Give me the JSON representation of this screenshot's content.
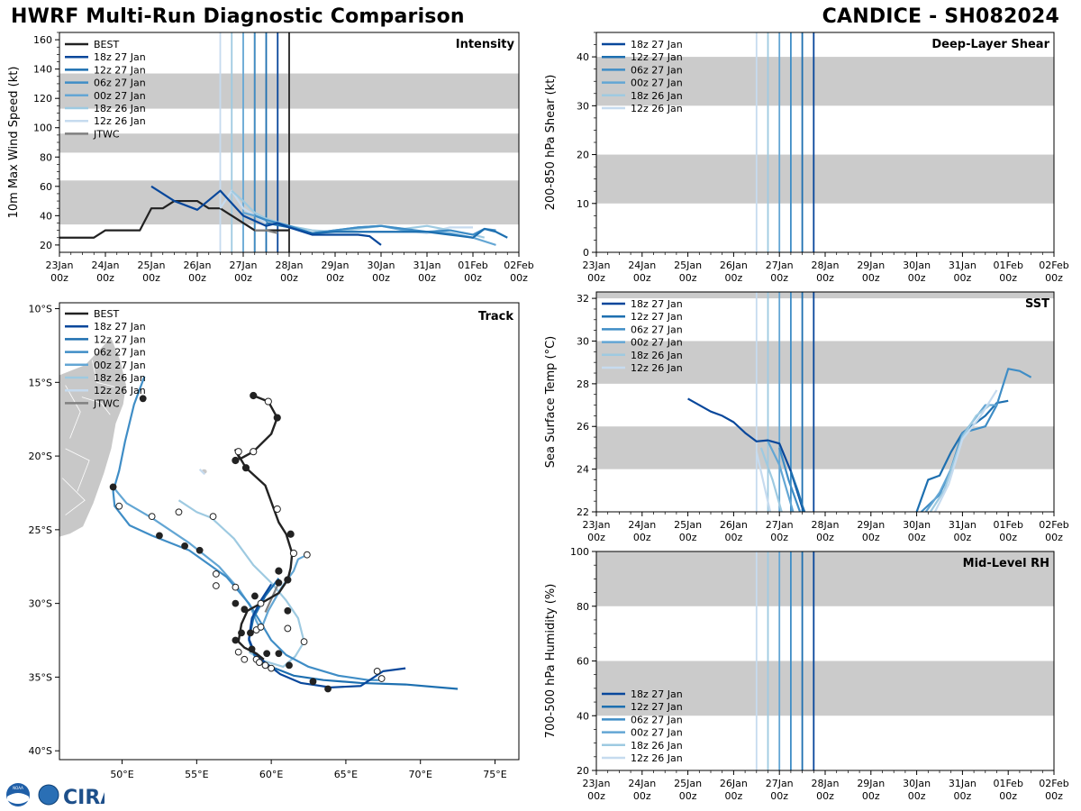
{
  "header": {
    "title_left": "HWRF Multi-Run Diagnostic Comparison",
    "title_right": "CANDICE - SH082024"
  },
  "logo": {
    "text": "CIRA",
    "small_text": "NOAA"
  },
  "colors": {
    "best": "#222222",
    "jtwc": "#808080",
    "shade": "#cbcbcb",
    "runs": {
      "18z 27 Jan": "#08479b",
      "12z 27 Jan": "#1d6fb0",
      "06z 27 Jan": "#3f8dc6",
      "00z 27 Jan": "#63a6d4",
      "18z 26 Jan": "#9ecae1",
      "12z 26 Jan": "#c6dbef"
    }
  },
  "time_axis": {
    "ticks": [
      "23Jan\n00z",
      "24Jan\n00z",
      "25Jan\n00z",
      "26Jan\n00z",
      "27Jan\n00z",
      "28Jan\n00z",
      "29Jan\n00z",
      "30Jan\n00z",
      "31Jan\n00z",
      "01Feb\n00z",
      "02Feb\n00z"
    ]
  },
  "chart_data": [
    {
      "id": "intensity",
      "type": "line",
      "title": "Intensity",
      "ylabel": "10m Max Wind Speed (kt)",
      "xlim_days": [
        0,
        10
      ],
      "ylim": [
        15,
        165
      ],
      "yticks": [
        20,
        40,
        60,
        80,
        100,
        120,
        140,
        160
      ],
      "shaded_bands": [
        [
          34,
          64
        ],
        [
          83,
          96
        ],
        [
          113,
          137
        ]
      ],
      "init_lines": [
        {
          "name": "12z 26 Jan",
          "x": 3.5
        },
        {
          "name": "18z 26 Jan",
          "x": 3.75
        },
        {
          "name": "00z 27 Jan",
          "x": 4.0
        },
        {
          "name": "JTWC",
          "x": 4.25
        },
        {
          "name": "06z 27 Jan",
          "x": 4.25
        },
        {
          "name": "12z 27 Jan",
          "x": 4.5
        },
        {
          "name": "18z 27 Jan",
          "x": 4.75
        },
        {
          "name": "BEST",
          "x": 5.0
        }
      ],
      "legend": [
        "BEST",
        "18z 27 Jan",
        "12z 27 Jan",
        "06z 27 Jan",
        "00z 27 Jan",
        "18z 26 Jan",
        "12z 26 Jan",
        "JTWC"
      ],
      "series": [
        {
          "name": "BEST",
          "x": [
            0,
            0.25,
            0.5,
            0.75,
            1.0,
            1.25,
            1.5,
            1.75,
            2.0,
            2.25,
            2.5,
            2.75,
            3.0,
            3.25,
            3.5,
            3.75,
            4.0,
            4.25,
            4.5,
            4.75,
            5.0
          ],
          "y": [
            25,
            25,
            25,
            25,
            30,
            30,
            30,
            30,
            45,
            45,
            50,
            50,
            50,
            45,
            45,
            40,
            35,
            30,
            30,
            30,
            30
          ]
        },
        {
          "name": "12z 26 Jan",
          "x": [
            3.5,
            3.75,
            4.0,
            4.25,
            4.5,
            5.0,
            5.5,
            6.0,
            6.5,
            7.0,
            7.5,
            8.0,
            8.5,
            9.0
          ],
          "y": [
            45,
            57,
            45,
            40,
            35,
            32,
            28,
            30,
            32,
            33,
            30,
            28,
            32,
            32
          ]
        },
        {
          "name": "18z 26 Jan",
          "x": [
            3.75,
            4.0,
            4.25,
            4.5,
            5.0,
            5.5,
            6.0,
            6.5,
            7.0,
            7.5,
            8.0,
            8.5,
            9.0,
            9.25
          ],
          "y": [
            57,
            50,
            42,
            38,
            33,
            30,
            29,
            31,
            33,
            31,
            33,
            30,
            27,
            25
          ]
        },
        {
          "name": "00z 27 Jan",
          "x": [
            4.0,
            4.25,
            4.5,
            5.0,
            5.5,
            6.0,
            6.5,
            7.0,
            7.5,
            8.0,
            8.5,
            9.0,
            9.5
          ],
          "y": [
            42,
            40,
            37,
            33,
            28,
            30,
            32,
            33,
            30,
            29,
            28,
            25,
            20
          ]
        },
        {
          "name": "06z 27 Jan",
          "x": [
            4.25,
            4.5,
            5.0,
            5.5,
            6.0,
            6.5,
            7.0,
            7.5,
            8.0,
            8.5,
            9.0,
            9.25,
            9.5
          ],
          "y": [
            40,
            37,
            33,
            28,
            30,
            32,
            33,
            31,
            29,
            30,
            27,
            31,
            30
          ]
        },
        {
          "name": "12z 27 Jan",
          "x": [
            4.5,
            5.0,
            5.5,
            6.0,
            6.5,
            7.0,
            7.5,
            8.0,
            8.5,
            9.0,
            9.25,
            9.5,
            9.75
          ],
          "y": [
            35,
            32,
            28,
            29,
            29,
            29,
            29,
            29,
            27,
            25,
            31,
            29,
            25
          ]
        },
        {
          "name": "18z 27 Jan",
          "x": [
            2.0,
            2.5,
            3.0,
            3.5,
            4.0,
            4.5,
            4.75,
            5.0,
            5.5,
            6.0,
            6.5,
            6.75,
            7.0
          ],
          "y": [
            60,
            50,
            44,
            57,
            40,
            33,
            35,
            32,
            27,
            27,
            27,
            26,
            20
          ]
        },
        {
          "name": "JTWC",
          "x": [
            4.25,
            4.5,
            4.75
          ],
          "y": [
            30,
            30,
            28
          ]
        }
      ]
    },
    {
      "id": "shear",
      "type": "line",
      "title": "Deep-Layer Shear",
      "ylabel": "200-850 hPa Shear (kt)",
      "xlim_days": [
        0,
        10
      ],
      "ylim": [
        0,
        45
      ],
      "yticks": [
        0,
        10,
        20,
        30,
        40
      ],
      "shaded_bands": [
        [
          10,
          20
        ],
        [
          30,
          40
        ]
      ],
      "init_lines": [
        {
          "name": "12z 26 Jan",
          "x": 3.5
        },
        {
          "name": "18z 26 Jan",
          "x": 3.75
        },
        {
          "name": "00z 27 Jan",
          "x": 4.0
        },
        {
          "name": "06z 27 Jan",
          "x": 4.25
        },
        {
          "name": "12z 27 Jan",
          "x": 4.5
        },
        {
          "name": "18z 27 Jan",
          "x": 4.75
        }
      ],
      "legend": [
        "18z 27 Jan",
        "12z 27 Jan",
        "06z 27 Jan",
        "00z 27 Jan",
        "18z 26 Jan",
        "12z 26 Jan"
      ],
      "series": []
    },
    {
      "id": "sst",
      "type": "line",
      "title": "SST",
      "ylabel": "Sea Surface Temp (°C)",
      "xlim_days": [
        0,
        10
      ],
      "ylim": [
        22,
        32.3
      ],
      "yticks": [
        22,
        24,
        26,
        28,
        30,
        32
      ],
      "shaded_bands": [
        [
          24,
          26
        ],
        [
          28,
          30
        ],
        [
          32,
          32.3
        ]
      ],
      "init_lines": [
        {
          "name": "12z 26 Jan",
          "x": 3.5
        },
        {
          "name": "18z 26 Jan",
          "x": 3.75
        },
        {
          "name": "00z 27 Jan",
          "x": 4.0
        },
        {
          "name": "06z 27 Jan",
          "x": 4.25
        },
        {
          "name": "12z 27 Jan",
          "x": 4.5
        },
        {
          "name": "18z 27 Jan",
          "x": 4.75
        }
      ],
      "legend": [
        "18z 27 Jan",
        "12z 27 Jan",
        "06z 27 Jan",
        "00z 27 Jan",
        "18z 26 Jan",
        "12z 26 Jan"
      ],
      "series": [
        {
          "name": "18z 27 Jan",
          "x": [
            2.0,
            2.5,
            2.75,
            3.0,
            3.25,
            3.5,
            3.75,
            4.0,
            4.25,
            4.5,
            4.55
          ],
          "y": [
            27.3,
            26.7,
            26.5,
            26.2,
            25.7,
            25.3,
            25.35,
            25.2,
            23.9,
            22.2,
            22.0
          ]
        },
        {
          "name": "12z 27 Jan",
          "x": [
            4.25,
            4.4,
            4.5,
            4.55
          ],
          "y": [
            23.9,
            23.0,
            22.3,
            22.0
          ]
        },
        {
          "name": "06z 27 Jan",
          "x": [
            4.0,
            4.2,
            4.45
          ],
          "y": [
            25.0,
            23.5,
            22.0
          ]
        },
        {
          "name": "00z 27 Jan",
          "x": [
            3.75,
            4.0,
            4.3
          ],
          "y": [
            25.3,
            24.2,
            22.0
          ]
        },
        {
          "name": "18z 26 Jan",
          "x": [
            3.6,
            3.85,
            4.05
          ],
          "y": [
            25.0,
            23.5,
            22.0
          ]
        },
        {
          "name": "12z 26 Jan",
          "x": [
            3.5,
            3.8
          ],
          "y": [
            24.8,
            22.0
          ]
        },
        {
          "name": "12z 27 Jan",
          "x": [
            7.0,
            7.25,
            7.5,
            7.75,
            8.0,
            8.5,
            8.75,
            9.0
          ],
          "y": [
            22.0,
            23.5,
            23.7,
            24.8,
            25.7,
            26.5,
            27.1,
            27.2
          ]
        },
        {
          "name": "06z 27 Jan",
          "x": [
            7.1,
            7.5,
            7.75,
            8.0,
            8.5,
            8.75,
            9.0,
            9.25,
            9.5
          ],
          "y": [
            22.0,
            22.8,
            24.0,
            25.7,
            26.0,
            27.0,
            28.7,
            28.6,
            28.3
          ]
        },
        {
          "name": "00z 27 Jan",
          "x": [
            7.2,
            7.5,
            7.75,
            8.0,
            8.25,
            8.5,
            8.75
          ],
          "y": [
            22.0,
            22.9,
            24.0,
            25.6,
            26.3,
            27.0,
            27.0
          ]
        },
        {
          "name": "18z 26 Jan",
          "x": [
            7.3,
            7.6,
            8.0,
            8.3,
            8.6
          ],
          "y": [
            22.0,
            23.0,
            25.5,
            26.5,
            27.0
          ]
        },
        {
          "name": "12z 26 Jan",
          "x": [
            7.4,
            7.7,
            8.0,
            8.4,
            8.75
          ],
          "y": [
            22.0,
            23.3,
            25.4,
            26.5,
            27.7
          ]
        }
      ]
    },
    {
      "id": "rh",
      "type": "line",
      "title": "Mid-Level RH",
      "ylabel": "700-500 hPa Humidity (%)",
      "xlim_days": [
        0,
        10
      ],
      "ylim": [
        20,
        100
      ],
      "yticks": [
        20,
        40,
        60,
        80,
        100
      ],
      "shaded_bands": [
        [
          40,
          60
        ],
        [
          80,
          100
        ]
      ],
      "init_lines": [
        {
          "name": "12z 26 Jan",
          "x": 3.5
        },
        {
          "name": "18z 26 Jan",
          "x": 3.75
        },
        {
          "name": "00z 27 Jan",
          "x": 4.0
        },
        {
          "name": "06z 27 Jan",
          "x": 4.25
        },
        {
          "name": "12z 27 Jan",
          "x": 4.5
        },
        {
          "name": "18z 27 Jan",
          "x": 4.75
        }
      ],
      "legend": [
        "18z 27 Jan",
        "12z 27 Jan",
        "06z 27 Jan",
        "00z 27 Jan",
        "18z 26 Jan",
        "12z 26 Jan"
      ],
      "series": []
    },
    {
      "id": "track",
      "type": "line",
      "title": "Track",
      "xlabel_ticks": [
        "50°E",
        "55°E",
        "60°E",
        "65°E",
        "70°E",
        "75°E"
      ],
      "ylabel_ticks": [
        "10°S",
        "15°S",
        "20°S",
        "25°S",
        "30°S",
        "35°S",
        "40°S"
      ],
      "xlim_lon": [
        45.8,
        76.6
      ],
      "ylim_lat": [
        -40.6,
        -9.6
      ],
      "legend": [
        "BEST",
        "18z 27 Jan",
        "12z 27 Jan",
        "06z 27 Jan",
        "00z 27 Jan",
        "18z 26 Jan",
        "12z 26 Jan",
        "JTWC"
      ],
      "series": [
        {
          "name": "BEST",
          "lon": [
            58.8,
            59.8,
            60.4,
            60.0,
            58.8,
            57.9,
            57.6,
            58.3,
            59.6,
            60.5,
            61.0,
            61.4,
            61.3,
            61.1,
            60.5,
            59.3,
            58.4,
            58.0,
            57.9,
            57.8,
            58.2,
            59.0,
            59.5
          ],
          "lat": [
            -15.9,
            -16.3,
            -17.4,
            -18.5,
            -19.7,
            -20.2,
            -19.6,
            -20.8,
            -22.0,
            -24.5,
            -25.3,
            -26.6,
            -27.6,
            -28.4,
            -29.3,
            -30.0,
            -30.5,
            -31.4,
            -32.0,
            -32.6,
            -33.0,
            -33.4,
            -33.8
          ],
          "markers": [
            {
              "lon": 58.8,
              "lat": -15.9,
              "filled": true
            },
            {
              "lon": 59.8,
              "lat": -16.3,
              "filled": false
            },
            {
              "lon": 60.4,
              "lat": -17.4,
              "filled": true
            },
            {
              "lon": 58.8,
              "lat": -19.7,
              "filled": false
            },
            {
              "lon": 57.6,
              "lat": -20.3,
              "filled": true
            },
            {
              "lon": 57.8,
              "lat": -19.7,
              "filled": false
            },
            {
              "lon": 58.3,
              "lat": -20.8,
              "filled": true
            },
            {
              "lon": 60.4,
              "lat": -23.6,
              "filled": false
            },
            {
              "lon": 61.3,
              "lat": -25.3,
              "filled": true
            },
            {
              "lon": 61.5,
              "lat": -26.6,
              "filled": false
            },
            {
              "lon": 60.5,
              "lat": -27.8,
              "filled": true
            },
            {
              "lon": 61.1,
              "lat": -28.4,
              "filled": true
            }
          ]
        },
        {
          "name": "18z 27 Jan",
          "lon": [
            60.0,
            59.3,
            58.7,
            58.5,
            58.9,
            59.7,
            60.6,
            62.0,
            64.0,
            66.0,
            67.5,
            69.0
          ],
          "lat": [
            -28.7,
            -29.8,
            -31.0,
            -32.4,
            -33.4,
            -34.1,
            -34.8,
            -35.4,
            -35.7,
            -35.6,
            -34.6,
            -34.4
          ]
        },
        {
          "name": "12z 27 Jan",
          "lon": [
            60.5,
            59.6,
            58.8,
            58.5,
            58.9,
            60.0,
            61.5,
            63.5,
            66.0,
            69.0,
            72.5
          ],
          "lat": [
            -28.3,
            -29.5,
            -31.0,
            -32.5,
            -33.6,
            -34.3,
            -34.9,
            -35.2,
            -35.4,
            -35.5,
            -35.8
          ]
        },
        {
          "name": "06z 27 Jan",
          "lon": [
            51.5,
            50.8,
            50.2,
            49.8,
            49.4,
            49.5,
            50.5,
            52.0,
            54.5,
            57.0,
            58.5,
            59.3,
            60.0,
            61.0,
            62.5,
            64.5,
            66.5,
            67.5
          ],
          "lat": [
            -14.6,
            -16.5,
            -19.0,
            -21.0,
            -22.4,
            -23.4,
            -24.7,
            -25.4,
            -26.4,
            -28.2,
            -30.0,
            -31.3,
            -32.5,
            -33.5,
            -34.3,
            -34.9,
            -35.2,
            -35.2
          ]
        },
        {
          "name": "00z 27 Jan",
          "lon": [
            49.4,
            50.3,
            52.0,
            54.5,
            56.5,
            57.8,
            58.6,
            59.0,
            59.3,
            59.8,
            60.7,
            61.5,
            61.8,
            62.2
          ],
          "lat": [
            -22.1,
            -23.2,
            -24.2,
            -25.9,
            -27.5,
            -29.0,
            -30.2,
            -31.2,
            -31.8,
            -30.5,
            -28.9,
            -27.8,
            -27.0,
            -26.8
          ]
        },
        {
          "name": "18z 26 Jan",
          "lon": [
            53.8,
            55.0,
            56.0,
            57.5,
            58.8,
            60.0,
            61.0,
            61.8,
            62.2,
            61.6,
            60.8,
            59.5,
            58.5
          ],
          "lat": [
            -23.0,
            -23.8,
            -24.2,
            -25.6,
            -27.4,
            -28.6,
            -29.8,
            -31.0,
            -32.6,
            -33.6,
            -34.3,
            -33.9,
            -33.3
          ]
        },
        {
          "name": "12z 26 Jan",
          "lon": [
            55.2,
            55.5,
            55.3
          ],
          "lat": [
            -20.9,
            -21.2,
            -21.0
          ]
        },
        {
          "name": "JTWC",
          "lon": [
            59.6,
            60.5
          ],
          "lat": [
            -30.6,
            -28.6
          ]
        }
      ]
    }
  ]
}
